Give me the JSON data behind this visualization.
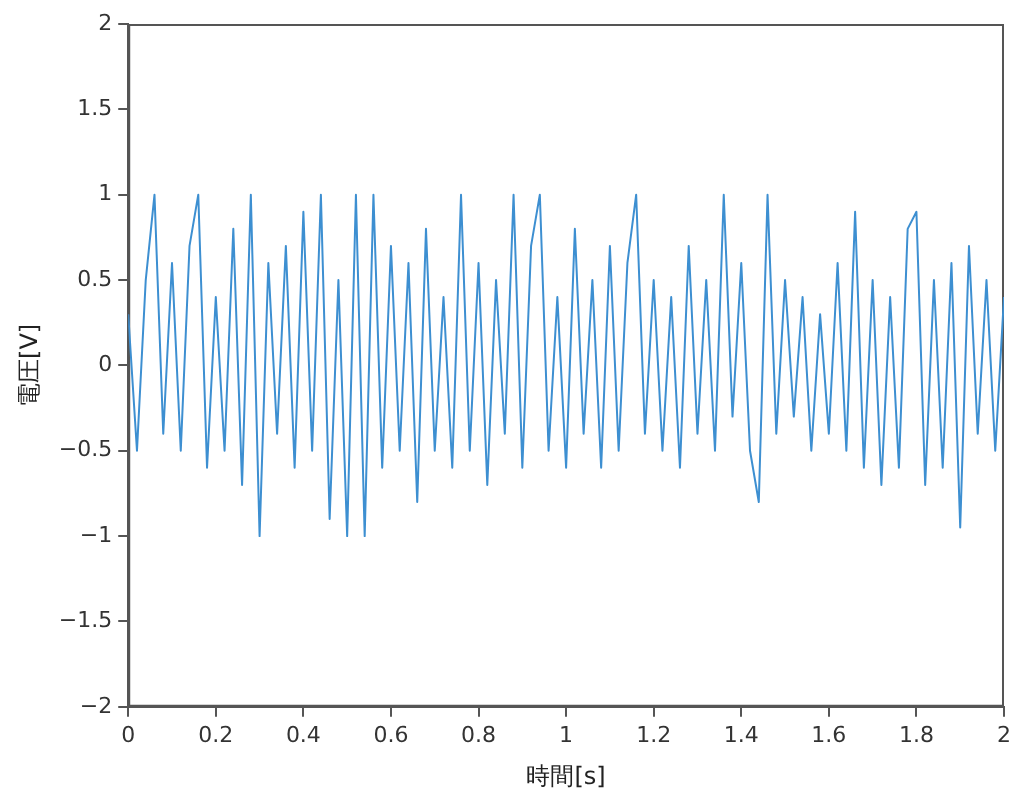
{
  "chart_data": {
    "type": "line",
    "xlabel": "時間[s]",
    "ylabel": "電圧[V]",
    "x": [
      0,
      0.02,
      0.04,
      0.06,
      0.08,
      0.1,
      0.12,
      0.14,
      0.16,
      0.18,
      0.2,
      0.22,
      0.24,
      0.26,
      0.28,
      0.3,
      0.32,
      0.34,
      0.36,
      0.38,
      0.4,
      0.42,
      0.44,
      0.46,
      0.48,
      0.5,
      0.52,
      0.54,
      0.56,
      0.58,
      0.6,
      0.62,
      0.64,
      0.66,
      0.68,
      0.7,
      0.72,
      0.74,
      0.76,
      0.78,
      0.8,
      0.82,
      0.84,
      0.86,
      0.88,
      0.9,
      0.92,
      0.94,
      0.96,
      0.98,
      1,
      1.02,
      1.04,
      1.06,
      1.08,
      1.1,
      1.12,
      1.14,
      1.16,
      1.18,
      1.2,
      1.22,
      1.24,
      1.26,
      1.28,
      1.3,
      1.32,
      1.34,
      1.36,
      1.38,
      1.4,
      1.42,
      1.44,
      1.46,
      1.48,
      1.5,
      1.52,
      1.54,
      1.56,
      1.58,
      1.6,
      1.62,
      1.64,
      1.66,
      1.68,
      1.7,
      1.72,
      1.74,
      1.76,
      1.78,
      1.8,
      1.82,
      1.84,
      1.86,
      1.88,
      1.9,
      1.92,
      1.94,
      1.96,
      1.98,
      2
    ],
    "series": [
      {
        "color": "#3d8fd1",
        "values": [
          0.3,
          -0.5,
          0.5,
          1,
          -0.4,
          0.6,
          -0.5,
          0.7,
          1,
          -0.6,
          0.4,
          -0.5,
          0.8,
          -0.7,
          1,
          -1,
          0.6,
          -0.4,
          0.7,
          -0.6,
          0.9,
          -0.5,
          1,
          -0.9,
          0.5,
          -1,
          1,
          -1,
          1,
          -0.6,
          0.7,
          -0.5,
          0.6,
          -0.8,
          0.8,
          -0.5,
          0.4,
          -0.6,
          1,
          -0.5,
          0.6,
          -0.7,
          0.5,
          -0.4,
          1,
          -0.6,
          0.7,
          1,
          -0.5,
          0.4,
          -0.6,
          0.8,
          -0.4,
          0.5,
          -0.6,
          0.7,
          -0.5,
          0.6,
          1,
          -0.4,
          0.5,
          -0.5,
          0.4,
          -0.6,
          0.7,
          -0.4,
          0.5,
          -0.5,
          1,
          -0.3,
          0.6,
          -0.5,
          -0.8,
          1,
          -0.4,
          0.5,
          -0.3,
          0.4,
          -0.5,
          0.3,
          -0.4,
          0.6,
          -0.5,
          0.9,
          -0.6,
          0.5,
          -0.7,
          0.4,
          -0.6,
          0.8,
          0.9,
          -0.7,
          0.5,
          -0.6,
          0.6,
          -0.95,
          0.7,
          -0.4,
          0.5,
          -0.5,
          0.4
        ]
      }
    ],
    "xlim": [
      0,
      2
    ],
    "xticks": [
      0,
      0.2,
      0.4,
      0.6,
      0.8,
      1,
      1.2,
      1.4,
      1.6,
      1.8,
      2
    ],
    "ylim": [
      -2,
      2
    ],
    "yticks": [
      {
        "value": -2,
        "label": "−2"
      },
      {
        "value": -1.5,
        "label": "−1.5"
      },
      {
        "value": -1,
        "label": "−1"
      },
      {
        "value": -0.5,
        "label": "−0.5"
      },
      0,
      0.5,
      1,
      1.5,
      2
    ],
    "grid": false,
    "legend": false,
    "marker": "none",
    "line_style": "solid"
  }
}
